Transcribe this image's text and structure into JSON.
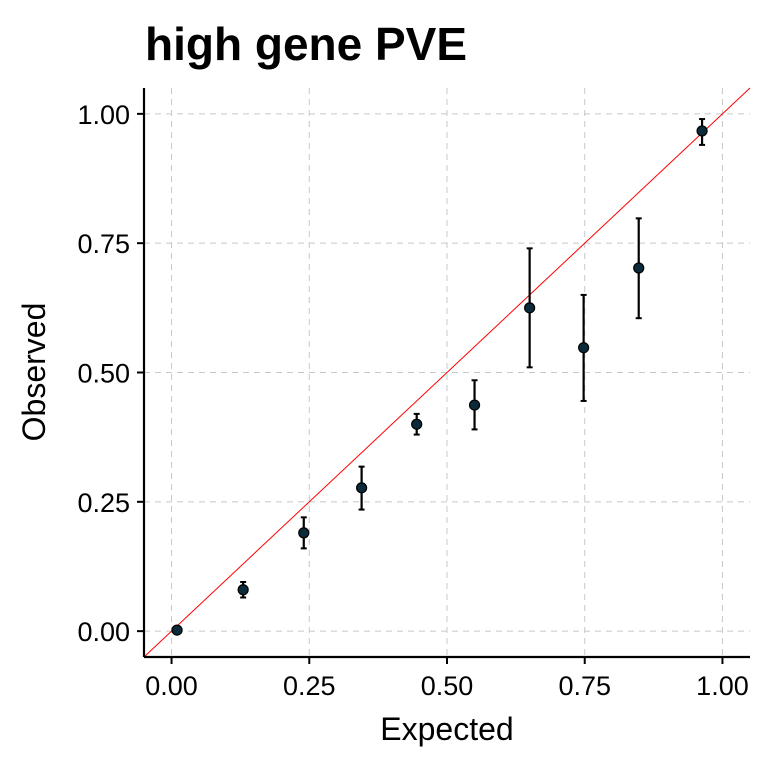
{
  "chart_data": {
    "type": "scatter",
    "title": "high gene PVE",
    "xlabel": "Expected",
    "ylabel": "Observed",
    "xlim": [
      -0.05,
      1.05
    ],
    "ylim": [
      -0.05,
      1.05
    ],
    "xticks": [
      0.0,
      0.25,
      0.5,
      0.75,
      1.0
    ],
    "xtick_labels": [
      "0.00",
      "0.25",
      "0.50",
      "0.75",
      "1.00"
    ],
    "yticks": [
      0.0,
      0.25,
      0.5,
      0.75,
      1.0
    ],
    "ytick_labels": [
      "0.00",
      "0.25",
      "0.50",
      "0.75",
      "1.00"
    ],
    "grid": true,
    "reference_line": {
      "slope": 1,
      "intercept": 0,
      "color": "#ff0000"
    },
    "point_color": "#0b2a3a",
    "points": [
      {
        "x": 0.01,
        "y": 0.002,
        "ylow": 0.0,
        "yhigh": 0.005
      },
      {
        "x": 0.13,
        "y": 0.08,
        "ylow": 0.065,
        "yhigh": 0.095
      },
      {
        "x": 0.24,
        "y": 0.19,
        "ylow": 0.16,
        "yhigh": 0.22
      },
      {
        "x": 0.345,
        "y": 0.277,
        "ylow": 0.235,
        "yhigh": 0.318
      },
      {
        "x": 0.445,
        "y": 0.4,
        "ylow": 0.38,
        "yhigh": 0.42
      },
      {
        "x": 0.55,
        "y": 0.437,
        "ylow": 0.39,
        "yhigh": 0.485
      },
      {
        "x": 0.65,
        "y": 0.625,
        "ylow": 0.51,
        "yhigh": 0.74
      },
      {
        "x": 0.748,
        "y": 0.548,
        "ylow": 0.445,
        "yhigh": 0.65
      },
      {
        "x": 0.848,
        "y": 0.702,
        "ylow": 0.605,
        "yhigh": 0.798
      },
      {
        "x": 0.963,
        "y": 0.967,
        "ylow": 0.94,
        "yhigh": 0.99
      }
    ]
  }
}
